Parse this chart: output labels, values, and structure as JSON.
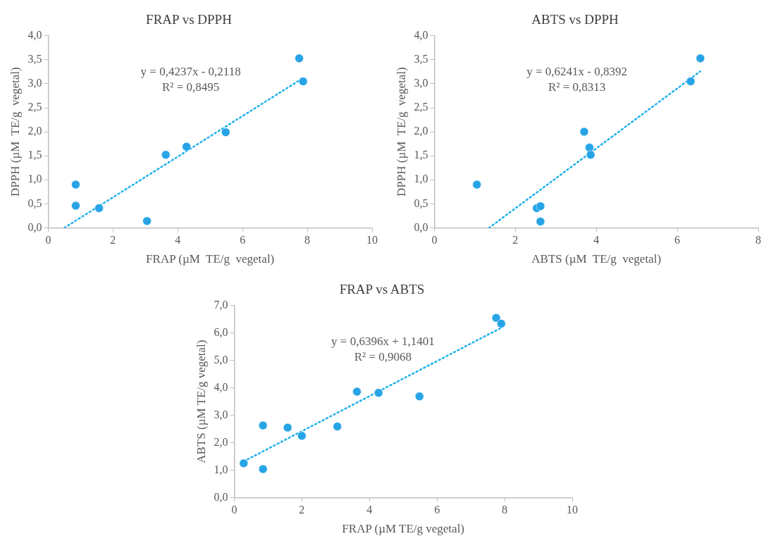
{
  "chart_data": [
    {
      "type": "scatter",
      "title": "FRAP vs DPPH",
      "xlabel": "FRAP (µM  TE/g  vegetal)",
      "ylabel": "DPPH (µM  TE/g  vegetal)",
      "xlim": [
        0,
        10
      ],
      "xticks": [
        0,
        2,
        4,
        6,
        8,
        10
      ],
      "ylim": [
        0,
        4
      ],
      "yticks": [
        {
          "value": 0,
          "label": "0,0"
        },
        {
          "value": 0.5,
          "label": "0,5"
        },
        {
          "value": 1,
          "label": "1,0"
        },
        {
          "value": 1.5,
          "label": "1,5"
        },
        {
          "value": 2,
          "label": "2,0"
        },
        {
          "value": 2.5,
          "label": "2,5"
        },
        {
          "value": 3,
          "label": "3,0"
        },
        {
          "value": 3.5,
          "label": "3,5"
        },
        {
          "value": 4,
          "label": "4,0"
        }
      ],
      "grid": false,
      "legend": false,
      "annotations": [
        "y = 0,4237x - 0,2118",
        "R² = 0,8495"
      ],
      "series": [
        {
          "color": "#27a4e6",
          "marker": "circle",
          "x": [
            0.85,
            0.85,
            1.57,
            3.05,
            3.63,
            4.27,
            5.48,
            7.75,
            7.87
          ],
          "values": [
            0.9,
            0.46,
            0.41,
            0.14,
            1.52,
            1.69,
            1.99,
            3.53,
            3.05
          ]
        },
        {
          "type": "line",
          "color": "#1cb0ec",
          "marker": "none",
          "line_style": "dotted",
          "x": [
            0.5,
            7.87
          ],
          "values": [
            0,
            3.12
          ]
        }
      ]
    },
    {
      "type": "scatter",
      "title": "ABTS vs DPPH",
      "xlabel": "ABTS (µM  TE/g  vegetal)",
      "ylabel": "DPPH (µM  TE/g  vegetal)",
      "xlim": [
        0,
        8
      ],
      "xticks": [
        0,
        2,
        4,
        6,
        8
      ],
      "ylim": [
        0,
        4
      ],
      "yticks": [
        {
          "value": 0,
          "label": "0,0"
        },
        {
          "value": 0.5,
          "label": "0,5"
        },
        {
          "value": 1,
          "label": "1,0"
        },
        {
          "value": 1.5,
          "label": "1,5"
        },
        {
          "value": 2,
          "label": "2,0"
        },
        {
          "value": 2.5,
          "label": "2,5"
        },
        {
          "value": 3,
          "label": "3,0"
        },
        {
          "value": 3.5,
          "label": "3,5"
        },
        {
          "value": 4,
          "label": "4,0"
        }
      ],
      "grid": false,
      "legend": false,
      "annotations": [
        "y = 0,6241x - 0,8392",
        "R² = 0,8313"
      ],
      "series": [
        {
          "color": "#27a4e6",
          "marker": "circle",
          "x": [
            1.05,
            2.53,
            2.62,
            2.62,
            3.7,
            3.83,
            3.86,
            6.33,
            6.57
          ],
          "values": [
            0.9,
            0.41,
            0.45,
            0.13,
            2.0,
            1.67,
            1.52,
            3.05,
            3.53
          ]
        },
        {
          "type": "line",
          "color": "#1cb0ec",
          "marker": "none",
          "line_style": "dotted",
          "x": [
            1.35,
            6.57
          ],
          "values": [
            0,
            3.26
          ]
        }
      ]
    },
    {
      "type": "scatter",
      "title": "FRAP vs ABTS",
      "xlabel": "FRAP (µM TE/g vegetal)",
      "ylabel": "ABTS (µM TE/g vegetal)",
      "xlim": [
        0,
        10
      ],
      "xticks": [
        0,
        2,
        4,
        6,
        8,
        10
      ],
      "ylim": [
        0,
        7
      ],
      "yticks": [
        {
          "value": 0,
          "label": "0,0"
        },
        {
          "value": 1,
          "label": "1,0"
        },
        {
          "value": 2,
          "label": "2,0"
        },
        {
          "value": 3,
          "label": "3,0"
        },
        {
          "value": 4,
          "label": "4,0"
        },
        {
          "value": 5,
          "label": "5,0"
        },
        {
          "value": 6,
          "label": "6,0"
        },
        {
          "value": 7,
          "label": "7,0"
        }
      ],
      "grid": false,
      "legend": false,
      "annotations": [
        "y = 0,6396x + 1,1401",
        "R² = 0,9068"
      ],
      "series": [
        {
          "color": "#27a4e6",
          "marker": "circle",
          "x": [
            0.28,
            0.85,
            0.85,
            1.58,
            2.0,
            3.05,
            3.63,
            4.27,
            5.48,
            7.75,
            7.9
          ],
          "values": [
            1.25,
            2.63,
            1.04,
            2.55,
            2.25,
            2.59,
            3.86,
            3.82,
            3.69,
            6.55,
            6.34
          ]
        },
        {
          "type": "line",
          "color": "#1cb0ec",
          "marker": "none",
          "line_style": "dotted",
          "x": [
            0.28,
            7.9
          ],
          "values": [
            1.32,
            6.19
          ]
        }
      ]
    }
  ]
}
